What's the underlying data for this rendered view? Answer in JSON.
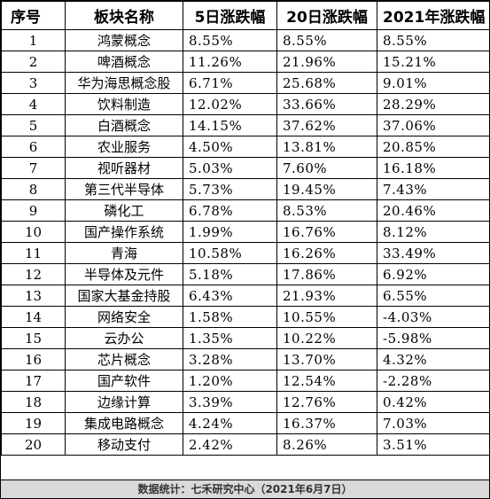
{
  "table": {
    "headers": [
      "序号",
      "板块名称",
      "5日涨跌幅",
      "20日涨跌幅",
      "2021年涨跌幅"
    ],
    "rows": [
      [
        "1",
        "鸿蒙概念",
        "8.55%",
        "8.55%",
        "8.55%"
      ],
      [
        "2",
        "啤酒概念",
        "11.26%",
        "21.96%",
        "15.21%"
      ],
      [
        "3",
        "华为海思概念股",
        "6.71%",
        "25.68%",
        "9.01%"
      ],
      [
        "4",
        "饮料制造",
        "12.02%",
        "33.66%",
        "28.29%"
      ],
      [
        "5",
        "白酒概念",
        "14.15%",
        "37.62%",
        "37.06%"
      ],
      [
        "6",
        "农业服务",
        "4.50%",
        "13.81%",
        "20.85%"
      ],
      [
        "7",
        "视听器材",
        "5.03%",
        "7.60%",
        "16.18%"
      ],
      [
        "8",
        "第三代半导体",
        "5.73%",
        "19.45%",
        "7.43%"
      ],
      [
        "9",
        "磷化工",
        "6.78%",
        "8.53%",
        "20.46%"
      ],
      [
        "10",
        "国产操作系统",
        "1.99%",
        "16.76%",
        "8.12%"
      ],
      [
        "11",
        "青海",
        "10.58%",
        "16.26%",
        "33.49%"
      ],
      [
        "12",
        "半导体及元件",
        "5.18%",
        "17.86%",
        "6.92%"
      ],
      [
        "13",
        "国家大基金持股",
        "6.43%",
        "21.93%",
        "6.55%"
      ],
      [
        "14",
        "网络安全",
        "1.58%",
        "10.55%",
        "-4.03%"
      ],
      [
        "15",
        "云办公",
        "1.35%",
        "10.22%",
        "-5.98%"
      ],
      [
        "16",
        "芯片概念",
        "3.28%",
        "13.70%",
        "4.32%"
      ],
      [
        "17",
        "国产软件",
        "1.20%",
        "12.54%",
        "-2.28%"
      ],
      [
        "18",
        "边缘计算",
        "3.39%",
        "12.76%",
        "0.42%"
      ],
      [
        "19",
        "集成电路概念",
        "4.24%",
        "16.37%",
        "7.03%"
      ],
      [
        "20",
        "移动支付",
        "2.42%",
        "8.26%",
        "3.51%"
      ]
    ]
  },
  "footer": {
    "text": "数据统计：七禾研究中心（2021年6月7日）"
  }
}
